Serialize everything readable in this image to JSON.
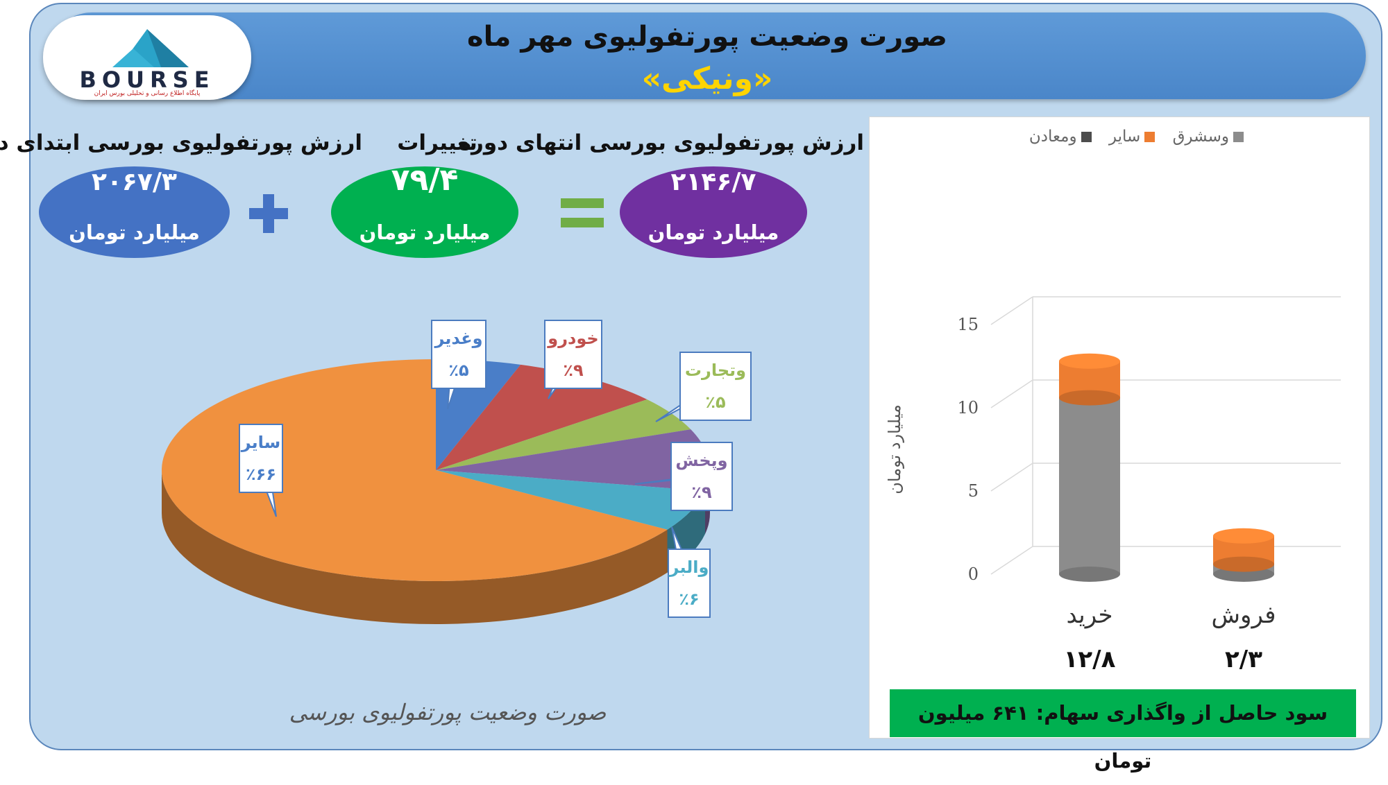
{
  "header": {
    "title": "صورت وضعیت پورتفولیوی مهر ماه",
    "subtitle": "«ونیکی»"
  },
  "logo": {
    "name": "BOURSE",
    "tagline": "پایگاه اطلاع رسانی و تحلیلی بورس ایران"
  },
  "metrics": {
    "start": {
      "label": "ارزش پورتفولیوی بورسی ابتدای دوره",
      "value": "۲۰۶۷/۳",
      "unit": "میلیارد تومان",
      "color": "#4472c4"
    },
    "change": {
      "label": "تغییرات",
      "value": "۷۹/۴",
      "unit": "میلیارد تومان",
      "color": "#00b050"
    },
    "end": {
      "label": "ارزش پورتفولیوی بورسی انتهای دوره",
      "value": "۲۱۴۶/۷",
      "unit": "میلیارد تومان",
      "color": "#7030a0"
    },
    "plus_color": "#4472c4",
    "equals_color": "#70ad47"
  },
  "chart_data": [
    {
      "type": "pie",
      "title": "",
      "caption": "صورت وضعیت پورتفولیوی بورسی",
      "slices": [
        {
          "name": "وغدیر",
          "label": "٪۵",
          "value": 5,
          "color": "#4a7ec8",
          "label_color": "#4a7ec8"
        },
        {
          "name": "خودرو",
          "label": "٪۹",
          "value": 9,
          "color": "#c0504d",
          "label_color": "#c0504d"
        },
        {
          "name": "وتجارت",
          "label": "٪۵",
          "value": 5,
          "color": "#9bbb59",
          "label_color": "#9bbb59"
        },
        {
          "name": "وپخش",
          "label": "٪۹",
          "value": 9,
          "color": "#8064a2",
          "label_color": "#8064a2"
        },
        {
          "name": "والبر",
          "label": "٪۶",
          "value": 6,
          "color": "#4bacc6",
          "label_color": "#4bacc6"
        },
        {
          "name": "سایر",
          "label": "٪۶۶",
          "value": 66,
          "color": "#f0913f",
          "label_color": "#4a7ec8"
        }
      ]
    },
    {
      "type": "bar",
      "stacked": true,
      "categories": [
        "خرید",
        "فروش"
      ],
      "category_totals": [
        "۱۲/۸",
        "۲/۳"
      ],
      "series": [
        {
          "name": "وسشرق",
          "values": [
            10.6,
            0.6
          ],
          "color": "#8c8c8c"
        },
        {
          "name": "سایر",
          "values": [
            2.2,
            1.7
          ],
          "color": "#ed7d31"
        },
        {
          "name": "ومعادن",
          "values": [
            0,
            0
          ],
          "color": "#4d4d4d"
        }
      ],
      "ylabel": "میلیارد تومان",
      "ylim": [
        0,
        15
      ],
      "yticks": [
        "0",
        "5",
        "10",
        "15"
      ],
      "legend_position": "top"
    }
  ],
  "footer": {
    "text": "سود حاصل از واگذاری سهام: ۶۴۱ میلیون تومان"
  }
}
